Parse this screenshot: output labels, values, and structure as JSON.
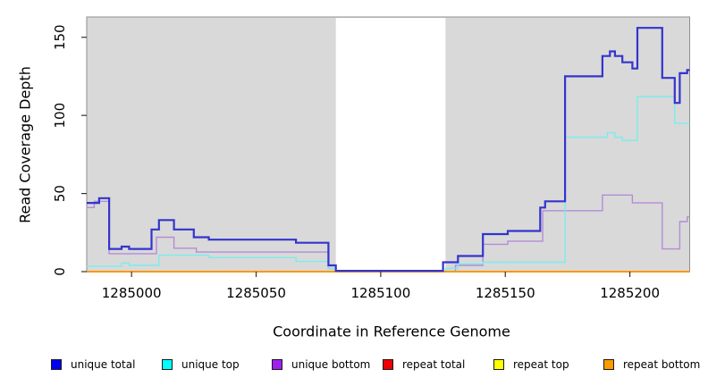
{
  "chart_data": {
    "type": "line",
    "step": true,
    "title": "",
    "xlabel": "Coordinate in Reference Genome",
    "ylabel": "Read Coverage Depth",
    "xlim": [
      1284982,
      1285224
    ],
    "ylim": [
      0,
      163
    ],
    "x_ticks": [
      1285000,
      1285050,
      1285100,
      1285150,
      1285200
    ],
    "y_ticks": [
      0,
      50,
      100,
      150
    ],
    "panel_background": "#d9d9d9",
    "panel_border_color": "#8e8e8e",
    "tick_color": "#333333",
    "grid": "off",
    "legend_position": "bottom",
    "masked_region": {
      "x0": 1285082,
      "x1": 1285126,
      "color": "#ffffff"
    },
    "series": [
      {
        "name": "unique total",
        "color": "#3434cd",
        "line_width": 2.2,
        "z": 6,
        "points": [
          [
            1284982,
            44
          ],
          [
            1284987,
            47
          ],
          [
            1284991,
            14.5
          ],
          [
            1284996,
            16
          ],
          [
            1284999,
            14.5
          ],
          [
            1285008,
            27
          ],
          [
            1285011,
            33
          ],
          [
            1285017,
            27
          ],
          [
            1285025,
            22
          ],
          [
            1285031,
            20.5
          ],
          [
            1285066,
            18.5
          ],
          [
            1285079,
            4
          ],
          [
            1285082,
            0.5
          ],
          [
            1285125,
            6
          ],
          [
            1285131,
            10
          ],
          [
            1285141,
            24
          ],
          [
            1285151,
            26
          ],
          [
            1285164,
            41
          ],
          [
            1285166,
            45
          ],
          [
            1285174,
            125
          ],
          [
            1285189,
            138
          ],
          [
            1285192,
            141
          ],
          [
            1285194,
            138
          ],
          [
            1285197,
            134
          ],
          [
            1285201,
            130
          ],
          [
            1285203,
            156
          ],
          [
            1285213,
            124
          ],
          [
            1285218,
            108
          ],
          [
            1285220,
            127
          ],
          [
            1285223,
            129
          ]
        ]
      },
      {
        "name": "unique top",
        "color": "#79eded",
        "line_width": 1.4,
        "z": 4,
        "points": [
          [
            1284982,
            3.5
          ],
          [
            1284996,
            5.5
          ],
          [
            1284999,
            4
          ],
          [
            1285011,
            10.5
          ],
          [
            1285031,
            9
          ],
          [
            1285066,
            6.5
          ],
          [
            1285079,
            2
          ],
          [
            1285082,
            0
          ],
          [
            1285126,
            2
          ],
          [
            1285131,
            5
          ],
          [
            1285141,
            6
          ],
          [
            1285174,
            86
          ],
          [
            1285191,
            89
          ],
          [
            1285194,
            86
          ],
          [
            1285197,
            84
          ],
          [
            1285203,
            112
          ],
          [
            1285218,
            95
          ]
        ]
      },
      {
        "name": "unique bottom",
        "color": "#b48cd8",
        "line_width": 1.4,
        "z": 3,
        "points": [
          [
            1284982,
            41
          ],
          [
            1284985,
            45
          ],
          [
            1284991,
            11.5
          ],
          [
            1285010,
            22
          ],
          [
            1285017,
            15
          ],
          [
            1285026,
            12.5
          ],
          [
            1285079,
            2
          ],
          [
            1285082,
            0
          ],
          [
            1285130,
            4
          ],
          [
            1285141,
            17.5
          ],
          [
            1285151,
            19.5
          ],
          [
            1285165,
            39
          ],
          [
            1285189,
            49
          ],
          [
            1285201,
            44
          ],
          [
            1285213,
            14.5
          ],
          [
            1285220,
            32
          ],
          [
            1285223,
            35
          ]
        ]
      },
      {
        "name": "repeat total",
        "color": "#cc0000",
        "line_width": 1.5,
        "z": 1,
        "points": [
          [
            1284982,
            0
          ]
        ]
      },
      {
        "name": "repeat top",
        "color": "#f5f500",
        "line_width": 1.5,
        "z": 2,
        "points": [
          [
            1284982,
            0
          ]
        ]
      },
      {
        "name": "repeat bottom",
        "color": "#ff9702",
        "line_width": 2,
        "z": 5,
        "points": [
          [
            1284982,
            0
          ]
        ]
      }
    ]
  },
  "legend": {
    "items": [
      {
        "label": "unique total",
        "color": "#0000ee"
      },
      {
        "label": "unique top",
        "color": "#00ffff"
      },
      {
        "label": "unique bottom",
        "color": "#a020f0"
      },
      {
        "label": "repeat total",
        "color": "#ee0000"
      },
      {
        "label": "repeat top",
        "color": "#ffff00"
      },
      {
        "label": "repeat bottom",
        "color": "#ff9900"
      }
    ]
  }
}
